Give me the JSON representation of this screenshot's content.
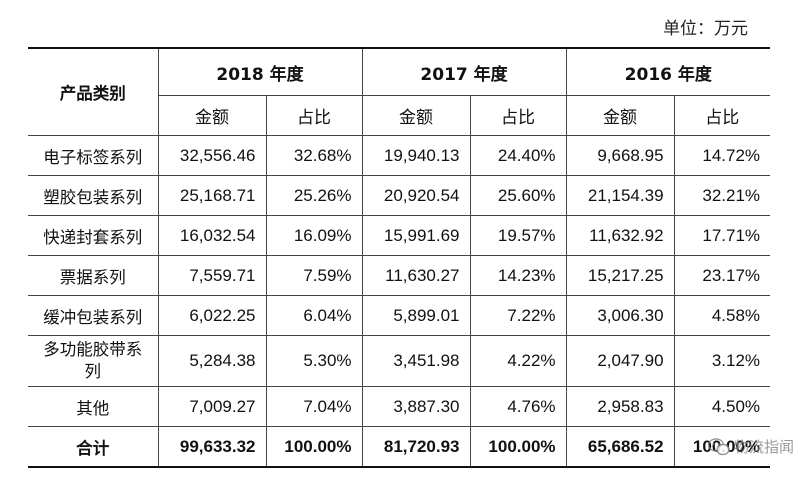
{
  "unit_label": "单位：万元",
  "header": {
    "category": "产品类别",
    "years": [
      "2018 年度",
      "2017 年度",
      "2016 年度"
    ],
    "amount": "金额",
    "ratio": "占比"
  },
  "rows": [
    {
      "cat": "电子标签系列",
      "v": [
        "32,556.46",
        "32.68%",
        "19,940.13",
        "24.40%",
        "9,668.95",
        "14.72%"
      ]
    },
    {
      "cat": "塑胶包装系列",
      "v": [
        "25,168.71",
        "25.26%",
        "20,920.54",
        "25.60%",
        "21,154.39",
        "32.21%"
      ]
    },
    {
      "cat": "快递封套系列",
      "v": [
        "16,032.54",
        "16.09%",
        "15,991.69",
        "19.57%",
        "11,632.92",
        "17.71%"
      ]
    },
    {
      "cat": "票据系列",
      "v": [
        "7,559.71",
        "7.59%",
        "11,630.27",
        "14.23%",
        "15,217.25",
        "23.17%"
      ]
    },
    {
      "cat": "缓冲包装系列",
      "v": [
        "6,022.25",
        "6.04%",
        "5,899.01",
        "7.22%",
        "3,006.30",
        "4.58%"
      ]
    },
    {
      "cat": "多功能胶带系列",
      "v": [
        "5,284.38",
        "5.30%",
        "3,451.98",
        "4.22%",
        "2,047.90",
        "3.12%"
      ]
    },
    {
      "cat": "其他",
      "v": [
        "7,009.27",
        "7.04%",
        "3,887.30",
        "4.76%",
        "2,958.83",
        "4.50%"
      ]
    },
    {
      "cat": "合计",
      "v": [
        "99,633.32",
        "100.00%",
        "81,720.93",
        "100.00%",
        "65,686.52",
        "100.00%"
      ]
    }
  ],
  "watermark": {
    "text": "物流指闻",
    "icon": "wechat-icon"
  }
}
